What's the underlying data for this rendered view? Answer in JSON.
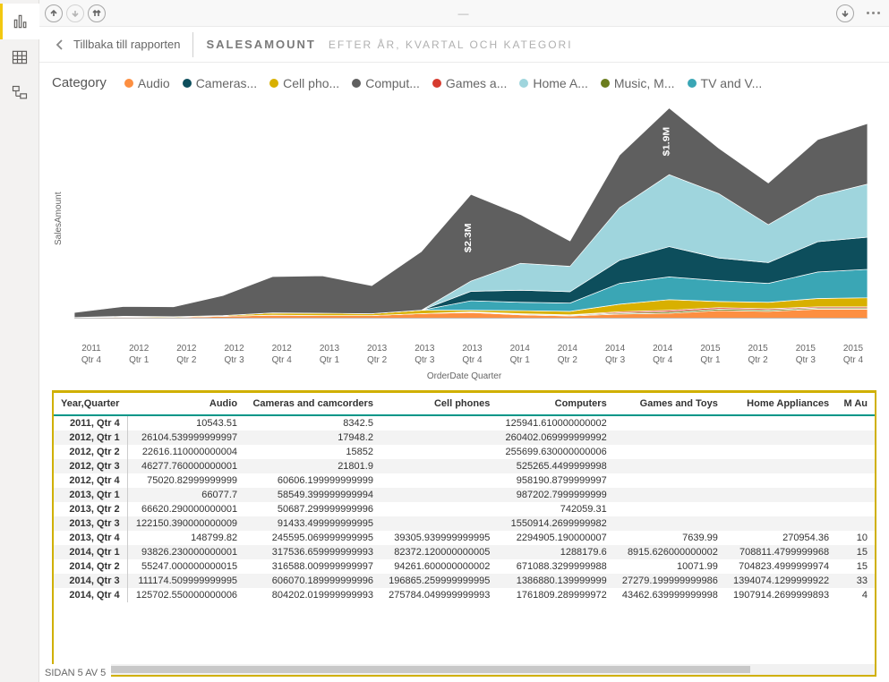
{
  "nav": {
    "items": [
      "bar-chart-icon",
      "table-icon",
      "model-icon"
    ],
    "active": 0
  },
  "topbar": {
    "grip": "—"
  },
  "breadcrumb": {
    "back": "Tillbaka till rapporten",
    "title": "SALESAMOUNT",
    "subtitle": "EFTER ÅR, KVARTAL OCH KATEGORI"
  },
  "legend": {
    "title": "Category",
    "items": [
      {
        "label": "Audio",
        "color": "#fd8f41"
      },
      {
        "label": "Cameras...",
        "color": "#0d4e5c"
      },
      {
        "label": "Cell pho...",
        "color": "#d8b000"
      },
      {
        "label": "Comput...",
        "color": "#5f5f5f"
      },
      {
        "label": "Games a...",
        "color": "#d63b2f"
      },
      {
        "label": "Home A...",
        "color": "#9fd5dd"
      },
      {
        "label": "Music, M...",
        "color": "#6b7d1e"
      },
      {
        "label": "TV and V...",
        "color": "#3aa6b5"
      }
    ]
  },
  "chart": {
    "type": "stacked-area-ribbon",
    "ylabel": "SalesAmount",
    "xaxis_title": "OrderDate Quarter",
    "background_color": "#ffffff",
    "xcategories": [
      "2011\nQtr 4",
      "2012\nQtr 1",
      "2012\nQtr 2",
      "2012\nQtr 3",
      "2012\nQtr 4",
      "2013\nQtr 1",
      "2013\nQtr 2",
      "2013\nQtr 3",
      "2013\nQtr 4",
      "2014\nQtr 1",
      "2014\nQtr 2",
      "2014\nQtr 3",
      "2014\nQtr 4",
      "2015\nQtr 1",
      "2015\nQtr 2",
      "2015\nQtr 3",
      "2015\nQtr 4"
    ],
    "annotations": [
      {
        "text": "$2.3M",
        "x": 8,
        "rotate": -90
      },
      {
        "text": "$1.9M",
        "x": 12,
        "rotate": -90
      }
    ],
    "series": [
      {
        "name": "Audio",
        "color": "#fd8f41",
        "values": [
          1,
          3,
          2,
          5,
          8,
          7,
          7,
          12,
          15,
          9,
          6,
          11,
          13,
          20,
          18,
          24,
          24
        ]
      },
      {
        "name": "Music, M",
        "color": "#6b7d1e",
        "values": [
          0,
          0,
          0,
          0,
          0,
          0,
          0,
          0,
          1,
          2,
          2,
          3,
          4,
          4,
          4,
          3,
          3
        ]
      },
      {
        "name": "Games a",
        "color": "#d63b2f",
        "values": [
          0,
          0,
          0,
          0,
          0,
          0,
          0,
          0,
          1,
          1,
          1,
          3,
          4,
          4,
          3,
          3,
          3
        ]
      },
      {
        "name": "Cell pho",
        "color": "#d8b000",
        "values": [
          1,
          2,
          2,
          2,
          6,
          6,
          5,
          9,
          4,
          8,
          9,
          20,
          28,
          16,
          17,
          22,
          24
        ]
      },
      {
        "name": "TV and V",
        "color": "#3aa6b5",
        "values": [
          0,
          0,
          0,
          0,
          0,
          0,
          0,
          0,
          25,
          22,
          22,
          55,
          60,
          55,
          50,
          70,
          75
        ]
      },
      {
        "name": "Cameras",
        "color": "#0d4e5c",
        "values": [
          0,
          0,
          0,
          0,
          0,
          0,
          0,
          0,
          25,
          32,
          30,
          61,
          80,
          60,
          55,
          80,
          85
        ]
      },
      {
        "name": "Home A",
        "color": "#9fd5dd",
        "values": [
          0,
          0,
          0,
          0,
          0,
          0,
          0,
          0,
          27,
          71,
          67,
          139,
          190,
          170,
          100,
          120,
          140
        ]
      },
      {
        "name": "Comput",
        "color": "#5f5f5f",
        "values": [
          13,
          26,
          26,
          53,
          96,
          99,
          74,
          155,
          229,
          129,
          67,
          139,
          176,
          120,
          110,
          150,
          160
        ]
      }
    ]
  },
  "table": {
    "columns": [
      "Year,Quarter",
      "Audio",
      "Cameras and camcorders",
      "Cell phones",
      "Computers",
      "Games and Toys",
      "Home Appliances",
      "M Au"
    ],
    "col_align": [
      "left",
      "right",
      "right",
      "right",
      "right",
      "right",
      "right",
      "right"
    ],
    "rows": [
      [
        "2011, Qtr 4",
        "10543.51",
        "8342.5",
        "",
        "125941.610000000002",
        "",
        "",
        ""
      ],
      [
        "2012, Qtr 1",
        "26104.539999999997",
        "17948.2",
        "",
        "260402.069999999992",
        "",
        "",
        ""
      ],
      [
        "2012, Qtr 2",
        "22616.110000000004",
        "15852",
        "",
        "255699.630000000006",
        "",
        "",
        ""
      ],
      [
        "2012, Qtr 3",
        "46277.760000000001",
        "21801.9",
        "",
        "525265.4499999998",
        "",
        "",
        ""
      ],
      [
        "2012, Qtr 4",
        "75020.82999999999",
        "60606.199999999999",
        "",
        "958190.8799999997",
        "",
        "",
        ""
      ],
      [
        "2013, Qtr 1",
        "66077.7",
        "58549.399999999994",
        "",
        "987202.7999999999",
        "",
        "",
        ""
      ],
      [
        "2013, Qtr 2",
        "66620.290000000001",
        "50687.299999999996",
        "",
        "742059.31",
        "",
        "",
        ""
      ],
      [
        "2013, Qtr 3",
        "122150.390000000009",
        "91433.499999999995",
        "",
        "1550914.2699999982",
        "",
        "",
        ""
      ],
      [
        "2013, Qtr 4",
        "148799.82",
        "245595.069999999995",
        "39305.939999999995",
        "2294905.190000007",
        "7639.99",
        "270954.36",
        "10"
      ],
      [
        "2014, Qtr 1",
        "93826.230000000001",
        "317536.659999999993",
        "82372.120000000005",
        "1288179.6",
        "8915.626000000002",
        "708811.4799999968",
        "15"
      ],
      [
        "2014, Qtr 2",
        "55247.000000000015",
        "316588.009999999997",
        "94261.600000000002",
        "671088.3299999988",
        "10071.99",
        "704823.4999999974",
        "15"
      ],
      [
        "2014, Qtr 3",
        "111174.509999999995",
        "606070.189999999996",
        "196865.259999999995",
        "1386880.139999999",
        "27279.199999999986",
        "1394074.1299999922",
        "33"
      ],
      [
        "2014, Qtr 4",
        "125702.550000000006",
        "804202.019999999993",
        "275784.049999999993",
        "1761809.289999972",
        "43462.639999999998",
        "1907914.2699999893",
        "4"
      ]
    ]
  },
  "footer": {
    "text": "SIDAN 5 AV 5"
  }
}
